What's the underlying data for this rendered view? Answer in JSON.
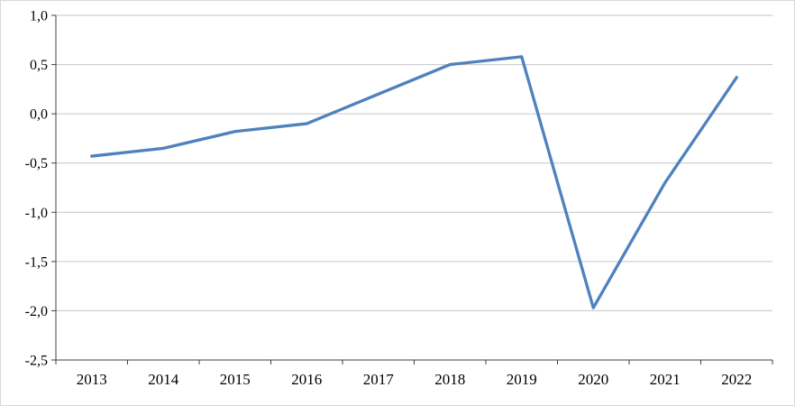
{
  "chart_data": {
    "type": "line",
    "categories": [
      "2013",
      "2014",
      "2015",
      "2016",
      "2017",
      "2018",
      "2019",
      "2020",
      "2021",
      "2022"
    ],
    "values": [
      -0.43,
      -0.35,
      -0.18,
      -0.1,
      0.2,
      0.5,
      0.58,
      -1.97,
      -0.7,
      0.37
    ],
    "series": [
      {
        "name": "series-1",
        "values": [
          -0.43,
          -0.35,
          -0.18,
          -0.1,
          0.2,
          0.5,
          0.58,
          -1.97,
          -0.7,
          0.37
        ]
      }
    ],
    "title": "",
    "xlabel": "",
    "ylabel": "",
    "ylim": [
      -2.5,
      1.0
    ],
    "ytick_step": 0.5,
    "ytick_labels": [
      "1,0",
      "0,5",
      "0,0",
      "-0,5",
      "-1,0",
      "-1,5",
      "-2,0",
      "-2,5"
    ],
    "grid": true,
    "legend": "none",
    "line_color": "#4f81bd",
    "grid_color": "#c6c6c6",
    "axis_color": "#404040",
    "tick_label_color": "#000000"
  }
}
